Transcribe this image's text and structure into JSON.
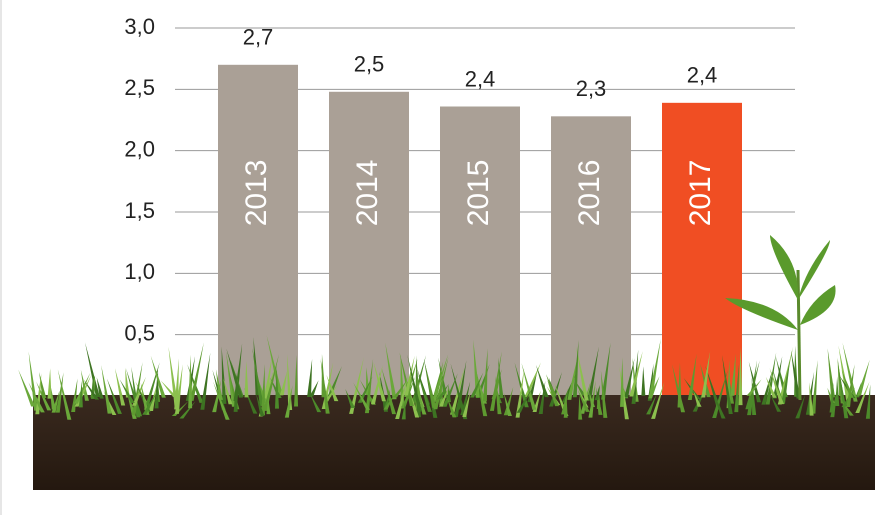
{
  "chart_data": {
    "type": "bar",
    "categories": [
      "2013",
      "2014",
      "2015",
      "2016",
      "2017"
    ],
    "values": [
      2.7,
      2.48,
      2.36,
      2.28,
      2.39
    ],
    "value_labels": [
      "2,7",
      "2,5",
      "2,4",
      "2,3",
      "2,4"
    ],
    "colors": [
      "#aaa096",
      "#aaa096",
      "#aaa096",
      "#aaa096",
      "#f04e23"
    ],
    "ylim": [
      0,
      3
    ],
    "yticks": [
      {
        "value": 0.5,
        "label": "0,5"
      },
      {
        "value": 1,
        "label": "1,0"
      },
      {
        "value": 1.5,
        "label": "1,5"
      },
      {
        "value": 2,
        "label": "2,0"
      },
      {
        "value": 2.5,
        "label": "2,5"
      },
      {
        "value": 3,
        "label": "3,0"
      }
    ],
    "grid": true
  }
}
